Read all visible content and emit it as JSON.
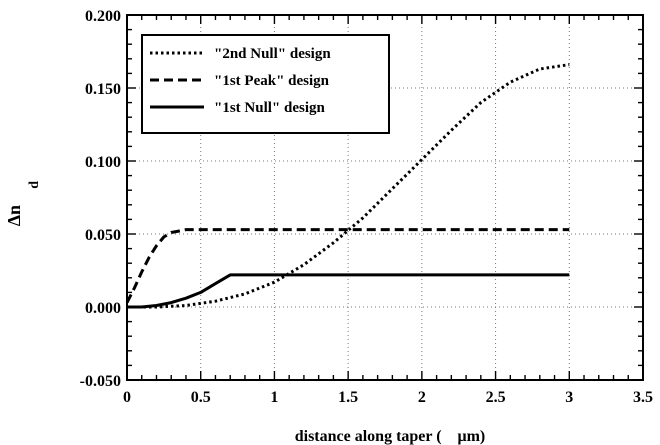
{
  "chart_data": {
    "type": "line",
    "title": "",
    "xlabel": "distance along taper (    μm)",
    "ylabel": "Δn",
    "ylabel_subscript": "d",
    "xlim": [
      0,
      3.5
    ],
    "ylim": [
      -0.05,
      0.2
    ],
    "xticks": [
      0,
      0.5,
      1,
      1.5,
      2,
      2.5,
      3,
      3.5
    ],
    "xtick_labels": [
      "0",
      "0.5",
      "1",
      "1.5",
      "2",
      "2.5",
      "3",
      "3.5"
    ],
    "yticks": [
      -0.05,
      0,
      0.05,
      0.1,
      0.15,
      0.2
    ],
    "ytick_labels": [
      "-0.050",
      "0.000",
      "0.050",
      "0.100",
      "0.150",
      "0.200"
    ],
    "x_minor_step": 0.1,
    "y_minor_step": 0.01,
    "grid": true,
    "legend_position": "top-left",
    "series": [
      {
        "name": "\"2nd Null\" design",
        "style": "dotted",
        "x": [
          0,
          0.2,
          0.4,
          0.6,
          0.8,
          1.0,
          1.2,
          1.4,
          1.6,
          1.8,
          2.0,
          2.2,
          2.4,
          2.6,
          2.8,
          3.0
        ],
        "y": [
          0.0,
          0.0,
          0.001,
          0.004,
          0.009,
          0.017,
          0.029,
          0.044,
          0.061,
          0.081,
          0.101,
          0.121,
          0.14,
          0.154,
          0.163,
          0.166
        ]
      },
      {
        "name": "\"1st Peak\" design",
        "style": "dashed",
        "x": [
          0,
          0.05,
          0.1,
          0.15,
          0.2,
          0.25,
          0.3,
          0.35,
          0.4,
          0.5,
          1.0,
          2.0,
          3.0
        ],
        "y": [
          0.003,
          0.013,
          0.024,
          0.034,
          0.042,
          0.048,
          0.051,
          0.052,
          0.053,
          0.053,
          0.053,
          0.053,
          0.053
        ]
      },
      {
        "name": "\"1st Null\" design",
        "style": "solid",
        "x": [
          0,
          0.1,
          0.2,
          0.3,
          0.4,
          0.5,
          0.6,
          0.7,
          1.0,
          2.0,
          3.0
        ],
        "y": [
          0.0,
          0.0,
          0.001,
          0.003,
          0.006,
          0.01,
          0.016,
          0.022,
          0.022,
          0.022,
          0.022
        ]
      }
    ]
  }
}
